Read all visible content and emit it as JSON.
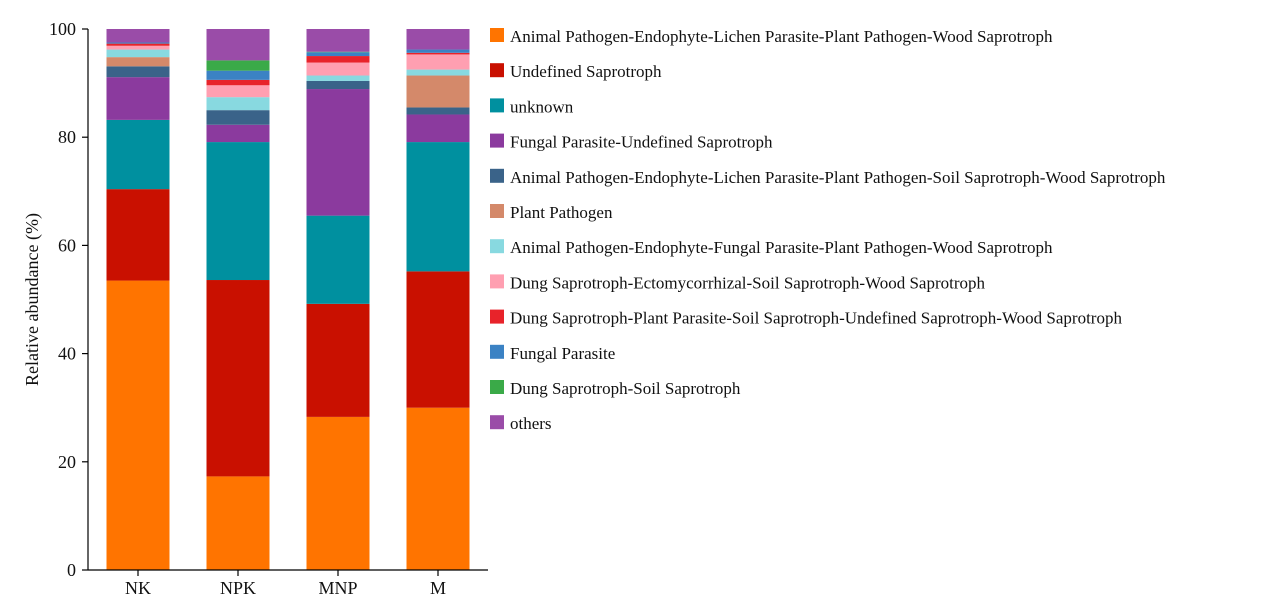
{
  "chart_data": {
    "type": "bar",
    "stacked": true,
    "title": "",
    "xlabel": "",
    "ylabel": "Relative abundance (%)",
    "ylim": [
      0,
      100
    ],
    "yticks": [
      0,
      20,
      40,
      60,
      80,
      100
    ],
    "categories": [
      "NK",
      "NPK",
      "MNP",
      "M"
    ],
    "legend_position": "right",
    "series": [
      {
        "name": "Animal Pathogen-Endophyte-Lichen Parasite-Plant Pathogen-Wood Saprotroph",
        "color": "#FF7400",
        "values": [
          53.5,
          17.3,
          28.3,
          30.0
        ]
      },
      {
        "name": "Undefined Saprotroph",
        "color": "#C91000",
        "values": [
          16.9,
          36.3,
          20.9,
          25.2
        ]
      },
      {
        "name": "unknown",
        "color": "#00909F",
        "values": [
          12.8,
          25.5,
          16.3,
          23.9
        ]
      },
      {
        "name": "Fungal Parasite-Undefined Saprotroph",
        "color": "#8B3A9E",
        "values": [
          7.9,
          3.2,
          23.4,
          5.1
        ]
      },
      {
        "name": "Animal Pathogen-Endophyte-Lichen Parasite-Plant Pathogen-Soil Saprotroph-Wood Saprotroph",
        "color": "#3A6389",
        "values": [
          2.0,
          2.7,
          1.5,
          1.3
        ]
      },
      {
        "name": "Plant Pathogen",
        "color": "#D4896A",
        "values": [
          1.7,
          0.0,
          0.0,
          5.9
        ]
      },
      {
        "name": "Animal Pathogen-Endophyte-Fungal Parasite-Plant Pathogen-Wood Saprotroph",
        "color": "#88D9E0",
        "values": [
          1.4,
          2.4,
          1.0,
          1.1
        ]
      },
      {
        "name": "Dung Saprotroph-Ectomycorrhizal-Soil Saprotroph-Wood Saprotroph",
        "color": "#FF9FB1",
        "values": [
          0.7,
          2.2,
          2.4,
          2.8
        ]
      },
      {
        "name": "Dung Saprotroph-Plant Parasite-Soil Saprotroph-Undefined Saprotroph-Wood Saprotroph",
        "color": "#E8232A",
        "values": [
          0.4,
          1.0,
          1.2,
          0.3
        ]
      },
      {
        "name": "Fungal Parasite",
        "color": "#3B82C4",
        "values": [
          0.2,
          1.7,
          0.7,
          0.6
        ]
      },
      {
        "name": "Dung Saprotroph-Soil Saprotroph",
        "color": "#3AAA48",
        "values": [
          0.0,
          1.9,
          0.1,
          0.0
        ]
      },
      {
        "name": "others",
        "color": "#9A4CA8",
        "values": [
          2.5,
          5.8,
          4.2,
          3.8
        ]
      }
    ]
  }
}
